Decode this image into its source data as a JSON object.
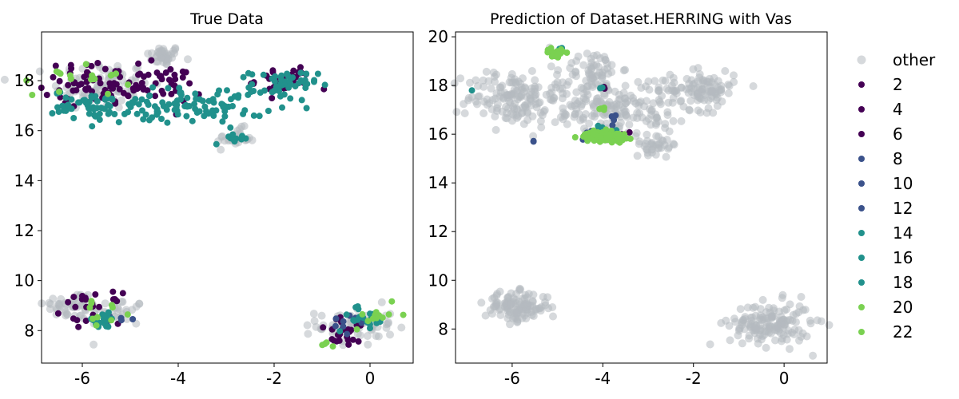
{
  "chart_data": [
    {
      "type": "scatter",
      "title": "True Data",
      "xlabel": "",
      "ylabel": "",
      "xlim": [
        -6.85,
        0.9
      ],
      "ylim": [
        6.7,
        19.95
      ],
      "xticks": [
        -6,
        -4,
        -2,
        0
      ],
      "xtick_labels": [
        "-6",
        "-4",
        "-2",
        "0"
      ],
      "yticks": [
        8,
        10,
        12,
        14,
        16,
        18
      ],
      "ytick_labels": [
        "8",
        "10",
        "12",
        "14",
        "16",
        "18"
      ],
      "grid": false,
      "clusters": [
        {
          "series": "other",
          "cx": -4.3,
          "cy": 19.0,
          "sx": 0.18,
          "sy": 0.2,
          "n": 40
        },
        {
          "series": "other",
          "cx": -5.6,
          "cy": 17.8,
          "sx": 0.5,
          "sy": 0.5,
          "n": 90
        },
        {
          "series": "other",
          "cx": -6.2,
          "cy": 9.0,
          "sx": 0.3,
          "sy": 0.3,
          "n": 45
        },
        {
          "series": "other",
          "cx": -5.3,
          "cy": 8.7,
          "sx": 0.3,
          "sy": 0.3,
          "n": 35
        },
        {
          "series": "other",
          "cx": -2.8,
          "cy": 15.7,
          "sx": 0.2,
          "sy": 0.2,
          "n": 25
        },
        {
          "series": "other",
          "cx": -0.3,
          "cy": 8.2,
          "sx": 0.4,
          "sy": 0.4,
          "n": 60
        },
        {
          "series": "2",
          "cx": -5.8,
          "cy": 17.9,
          "sx": 0.5,
          "sy": 0.4,
          "n": 60
        },
        {
          "series": "2",
          "cx": -4.5,
          "cy": 17.8,
          "sx": 0.5,
          "sy": 0.4,
          "n": 40
        },
        {
          "series": "2",
          "cx": -1.8,
          "cy": 18.0,
          "sx": 0.3,
          "sy": 0.3,
          "n": 35
        },
        {
          "series": "2",
          "cx": -5.8,
          "cy": 8.9,
          "sx": 0.3,
          "sy": 0.3,
          "n": 25
        },
        {
          "series": "2",
          "cx": -0.5,
          "cy": 7.9,
          "sx": 0.3,
          "sy": 0.3,
          "n": 25
        },
        {
          "series": "10",
          "cx": -5.3,
          "cy": 8.5,
          "sx": 0.2,
          "sy": 0.2,
          "n": 6
        },
        {
          "series": "10",
          "cx": -0.4,
          "cy": 8.2,
          "sx": 0.3,
          "sy": 0.2,
          "n": 10
        },
        {
          "series": "14",
          "cx": -5.8,
          "cy": 17.0,
          "sx": 0.4,
          "sy": 0.3,
          "n": 55
        },
        {
          "series": "14",
          "cx": -4.3,
          "cy": 17.0,
          "sx": 0.45,
          "sy": 0.35,
          "n": 55
        },
        {
          "series": "14",
          "cx": -3.0,
          "cy": 17.0,
          "sx": 0.4,
          "sy": 0.4,
          "n": 40
        },
        {
          "series": "14",
          "cx": -1.8,
          "cy": 17.8,
          "sx": 0.35,
          "sy": 0.3,
          "n": 50
        },
        {
          "series": "14",
          "cx": -2.8,
          "cy": 15.7,
          "sx": 0.15,
          "sy": 0.1,
          "n": 10
        },
        {
          "series": "14",
          "cx": -5.6,
          "cy": 8.4,
          "sx": 0.2,
          "sy": 0.15,
          "n": 20
        },
        {
          "series": "14",
          "cx": -0.1,
          "cy": 8.5,
          "sx": 0.3,
          "sy": 0.25,
          "n": 20
        },
        {
          "series": "20",
          "cx": -6.0,
          "cy": 18.2,
          "sx": 0.5,
          "sy": 0.4,
          "n": 18
        },
        {
          "series": "20",
          "cx": -5.5,
          "cy": 8.7,
          "sx": 0.3,
          "sy": 0.2,
          "n": 10
        },
        {
          "series": "20",
          "cx": 0.2,
          "cy": 8.6,
          "sx": 0.3,
          "sy": 0.25,
          "n": 12
        },
        {
          "series": "20",
          "cx": -1.0,
          "cy": 7.4,
          "sx": 0.1,
          "sy": 0.05,
          "n": 4
        }
      ]
    },
    {
      "type": "scatter",
      "title": "Prediction of Dataset.HERRING with Vas",
      "xlabel": "",
      "ylabel": "",
      "xlim": [
        -7.25,
        0.95
      ],
      "ylim": [
        6.6,
        20.2
      ],
      "xticks": [
        -6,
        -4,
        -2,
        0
      ],
      "xtick_labels": [
        "-6",
        "-4",
        "-2",
        "0"
      ],
      "yticks": [
        8,
        10,
        12,
        14,
        16,
        18,
        20
      ],
      "ytick_labels": [
        "8",
        "10",
        "12",
        "14",
        "16",
        "18",
        "20"
      ],
      "grid": false,
      "clusters": [
        {
          "series": "other",
          "cx": -6.0,
          "cy": 17.5,
          "sx": 0.5,
          "sy": 0.6,
          "n": 140
        },
        {
          "series": "other",
          "cx": -4.2,
          "cy": 18.7,
          "sx": 0.3,
          "sy": 0.35,
          "n": 50
        },
        {
          "series": "other",
          "cx": -4.3,
          "cy": 17.2,
          "sx": 0.6,
          "sy": 0.6,
          "n": 120
        },
        {
          "series": "other",
          "cx": -3.0,
          "cy": 17.2,
          "sx": 0.45,
          "sy": 0.6,
          "n": 80
        },
        {
          "series": "other",
          "cx": -1.8,
          "cy": 17.8,
          "sx": 0.35,
          "sy": 0.4,
          "n": 100
        },
        {
          "series": "other",
          "cx": -2.8,
          "cy": 15.6,
          "sx": 0.25,
          "sy": 0.2,
          "n": 35
        },
        {
          "series": "other",
          "cx": -5.9,
          "cy": 8.9,
          "sx": 0.35,
          "sy": 0.3,
          "n": 120
        },
        {
          "series": "other",
          "cx": -0.3,
          "cy": 8.2,
          "sx": 0.45,
          "sy": 0.45,
          "n": 150
        },
        {
          "series": "2",
          "cx": -3.9,
          "cy": 17.9,
          "sx": 0.05,
          "sy": 0.05,
          "n": 2
        },
        {
          "series": "2",
          "cx": -3.6,
          "cy": 16.0,
          "sx": 0.08,
          "sy": 0.1,
          "n": 4
        },
        {
          "series": "2",
          "cx": -3.4,
          "cy": 16.1,
          "sx": 0.01,
          "sy": 0.01,
          "n": 1
        },
        {
          "series": "10",
          "cx": -4.2,
          "cy": 16.0,
          "sx": 0.15,
          "sy": 0.1,
          "n": 25
        },
        {
          "series": "10",
          "cx": -5.5,
          "cy": 15.7,
          "sx": 0.05,
          "sy": 0.05,
          "n": 2
        },
        {
          "series": "10",
          "cx": -3.8,
          "cy": 16.5,
          "sx": 0.05,
          "sy": 0.15,
          "n": 4
        },
        {
          "series": "14",
          "cx": -6.9,
          "cy": 17.8,
          "sx": 0.01,
          "sy": 0.01,
          "n": 1
        },
        {
          "series": "14",
          "cx": -4.0,
          "cy": 17.9,
          "sx": 0.03,
          "sy": 0.03,
          "n": 2
        },
        {
          "series": "14",
          "cx": -4.9,
          "cy": 19.5,
          "sx": 0.03,
          "sy": 0.03,
          "n": 2
        },
        {
          "series": "14",
          "cx": -3.9,
          "cy": 16.2,
          "sx": 0.15,
          "sy": 0.1,
          "n": 8
        },
        {
          "series": "20",
          "cx": -5.05,
          "cy": 19.35,
          "sx": 0.1,
          "sy": 0.08,
          "n": 25
        },
        {
          "series": "20",
          "cx": -3.95,
          "cy": 15.9,
          "sx": 0.22,
          "sy": 0.1,
          "n": 130
        },
        {
          "series": "20",
          "cx": -4.0,
          "cy": 17.05,
          "sx": 0.05,
          "sy": 0.03,
          "n": 4
        }
      ]
    }
  ],
  "legend": {
    "placement": "right",
    "entries": [
      {
        "label": "other",
        "color": "#b4b9bf",
        "alpha": 0.55
      },
      {
        "label": "2",
        "color": "#440154",
        "alpha": 1
      },
      {
        "label": "4",
        "color": "#440154",
        "alpha": 1
      },
      {
        "label": "6",
        "color": "#440154",
        "alpha": 1
      },
      {
        "label": "8",
        "color": "#3b528b",
        "alpha": 1
      },
      {
        "label": "10",
        "color": "#3b528b",
        "alpha": 1
      },
      {
        "label": "12",
        "color": "#3b528b",
        "alpha": 1
      },
      {
        "label": "14",
        "color": "#21918c",
        "alpha": 1
      },
      {
        "label": "16",
        "color": "#21918c",
        "alpha": 1
      },
      {
        "label": "18",
        "color": "#21918c",
        "alpha": 1
      },
      {
        "label": "20",
        "color": "#7ad151",
        "alpha": 1
      },
      {
        "label": "22",
        "color": "#7ad151",
        "alpha": 1
      }
    ]
  },
  "colors": {
    "other": "#b4b9bf",
    "2": "#440154",
    "10": "#3b528b",
    "14": "#21918c",
    "20": "#7ad151"
  }
}
